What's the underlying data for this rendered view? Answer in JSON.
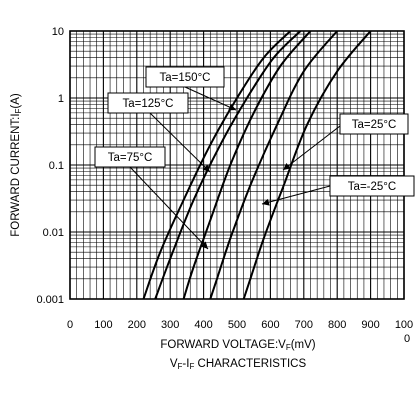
{
  "chart_data": {
    "type": "line",
    "title": "VF-IF CHARACTERISTICS",
    "xlabel": "FORWARD VOLTAGE:VF(mV)",
    "ylabel": "FORWARD CURRENT:IF(A)",
    "xlim": [
      0,
      1000
    ],
    "ylim": [
      0.001,
      10
    ],
    "yscale": "log",
    "grid": true,
    "x_ticks": [
      0,
      100,
      200,
      300,
      400,
      500,
      600,
      700,
      800,
      900,
      1000
    ],
    "x_tick_labels": [
      "0",
      "100",
      "200",
      "300",
      "400",
      "500",
      "600",
      "700",
      "800",
      "900",
      "100\n0"
    ],
    "y_ticks": [
      0.001,
      0.01,
      0.1,
      1,
      10
    ],
    "y_tick_labels": [
      "0.001",
      "0.01",
      "0.1",
      "1",
      "10"
    ],
    "series": [
      {
        "name": "Ta=150°C",
        "x": [
          220,
          270,
          340,
          420,
          500,
          580,
          660
        ],
        "y": [
          0.001,
          0.005,
          0.03,
          0.2,
          1,
          4,
          10
        ]
      },
      {
        "name": "Ta=125°C",
        "x": [
          255,
          300,
          370,
          450,
          530,
          610,
          690
        ],
        "y": [
          0.001,
          0.004,
          0.03,
          0.2,
          1,
          4,
          10
        ]
      },
      {
        "name": "Ta=75°C",
        "x": [
          340,
          370,
          420,
          480,
          550,
          630,
          720
        ],
        "y": [
          0.001,
          0.003,
          0.015,
          0.1,
          0.6,
          3,
          10
        ]
      },
      {
        "name": "Ta=25°C",
        "x": [
          420,
          440,
          480,
          540,
          620,
          700,
          800
        ],
        "y": [
          0.001,
          0.002,
          0.008,
          0.05,
          0.4,
          2.5,
          10
        ]
      },
      {
        "name": "Ta=-25°C",
        "x": [
          520,
          540,
          580,
          640,
          710,
          800,
          900
        ],
        "y": [
          0.001,
          0.002,
          0.008,
          0.05,
          0.4,
          2.5,
          10
        ]
      }
    ]
  }
}
